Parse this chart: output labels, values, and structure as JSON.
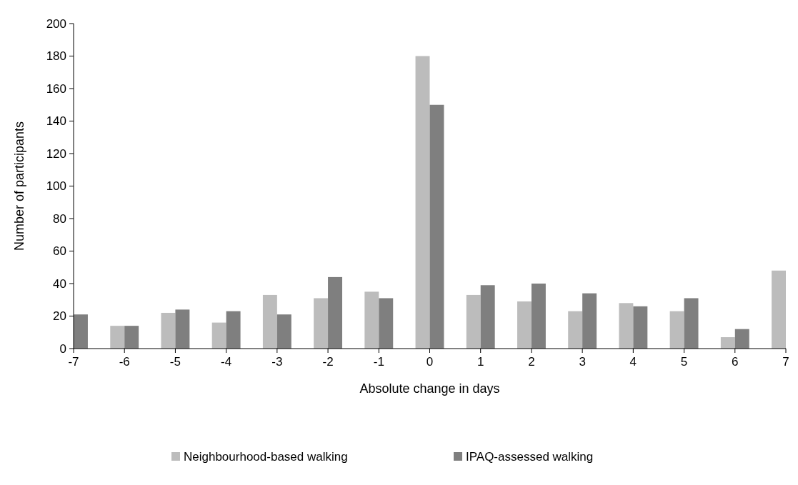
{
  "chart_data": {
    "type": "bar",
    "xlabel": "Absolute change in days",
    "ylabel": "Number of participants",
    "categories": [
      "-7",
      "-6",
      "-5",
      "-4",
      "-3",
      "-2",
      "-1",
      "0",
      "1",
      "2",
      "3",
      "4",
      "5",
      "6",
      "7"
    ],
    "series": [
      {
        "name": "Neighbourhood-based walking",
        "color": "#bcbcbc",
        "values": [
          null,
          14,
          22,
          16,
          33,
          31,
          35,
          180,
          33,
          29,
          23,
          28,
          23,
          7,
          48
        ]
      },
      {
        "name": "IPAQ-assessed walking",
        "color": "#7f7f7f",
        "values": [
          21,
          14,
          24,
          23,
          21,
          44,
          31,
          150,
          39,
          40,
          34,
          26,
          31,
          12,
          null
        ]
      }
    ],
    "ylim": [
      0,
      200
    ],
    "yticks": [
      0,
      20,
      40,
      60,
      80,
      100,
      120,
      140,
      160,
      180,
      200
    ],
    "grid": false,
    "legend": "bottom"
  }
}
